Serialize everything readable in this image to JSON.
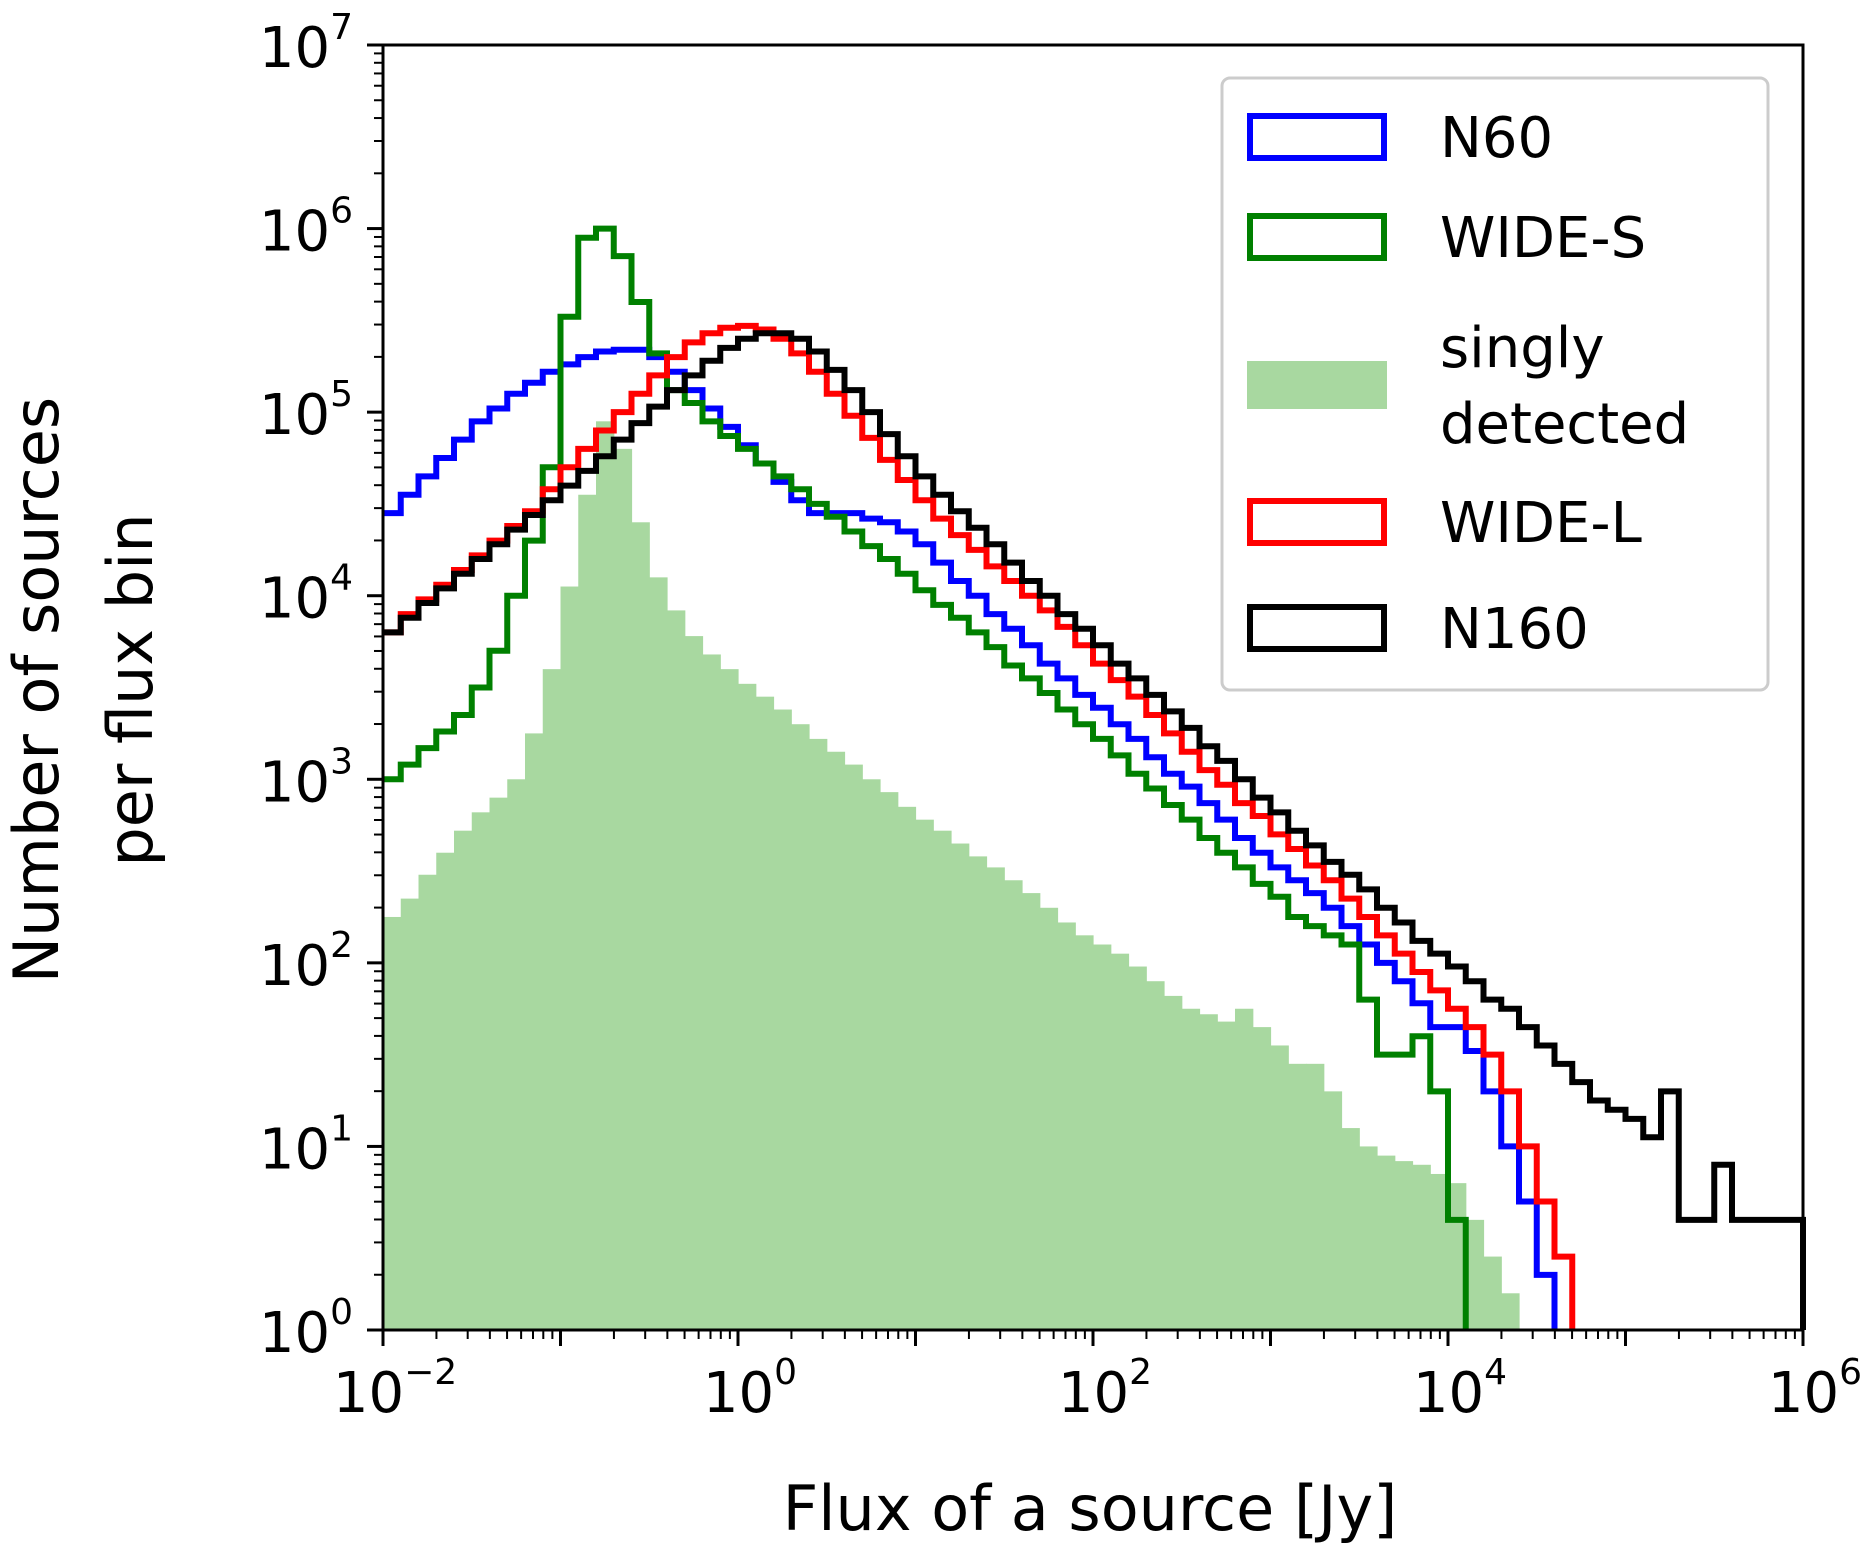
{
  "chart_data": {
    "type": "histogram",
    "title": "",
    "xlabel": "Flux of a source [Jy]",
    "ylabel_lines": [
      "Number of sources",
      "per flux bin"
    ],
    "xscale": "log",
    "yscale": "log",
    "xlim_log10": [
      -2,
      6
    ],
    "ylim_log10": [
      0,
      7
    ],
    "x_ticks": [
      {
        "base": "10",
        "exp": "−2",
        "log10": -2
      },
      {
        "base": "10",
        "exp": "0",
        "log10": 0
      },
      {
        "base": "10",
        "exp": "2",
        "log10": 2
      },
      {
        "base": "10",
        "exp": "4",
        "log10": 4
      },
      {
        "base": "10",
        "exp": "6",
        "log10": 6
      }
    ],
    "y_ticks": [
      {
        "base": "10",
        "exp": "0",
        "log10": 0
      },
      {
        "base": "10",
        "exp": "1",
        "log10": 1
      },
      {
        "base": "10",
        "exp": "2",
        "log10": 2
      },
      {
        "base": "10",
        "exp": "3",
        "log10": 3
      },
      {
        "base": "10",
        "exp": "4",
        "log10": 4
      },
      {
        "base": "10",
        "exp": "5",
        "log10": 5
      },
      {
        "base": "10",
        "exp": "6",
        "log10": 6
      },
      {
        "base": "10",
        "exp": "7",
        "log10": 7
      }
    ],
    "bin_edges_log10": {
      "start": -2.0,
      "width": 0.1
    },
    "legend_position": "top-right",
    "series": [
      {
        "name": "N60",
        "style": "step",
        "color": "#0000ff",
        "log10_counts": [
          4.45,
          4.55,
          4.65,
          4.75,
          4.85,
          4.95,
          5.02,
          5.1,
          5.16,
          5.22,
          5.26,
          5.3,
          5.33,
          5.34,
          5.34,
          5.3,
          5.22,
          5.12,
          5.02,
          4.92,
          4.82,
          4.72,
          4.62,
          4.52,
          4.45,
          4.45,
          4.45,
          4.42,
          4.4,
          4.35,
          4.28,
          4.18,
          4.08,
          4.0,
          3.9,
          3.82,
          3.73,
          3.63,
          3.55,
          3.46,
          3.39,
          3.3,
          3.22,
          3.12,
          3.03,
          2.96,
          2.87,
          2.78,
          2.68,
          2.6,
          2.52,
          2.45,
          2.38,
          2.3,
          2.2,
          2.1,
          2.0,
          1.9,
          1.78,
          1.65,
          1.65,
          1.52,
          1.3,
          1.0,
          0.7,
          0.3
        ]
      },
      {
        "name": "WIDE-S",
        "style": "step",
        "color": "#008000",
        "log10_counts": [
          3.0,
          3.08,
          3.17,
          3.26,
          3.35,
          3.5,
          3.7,
          4.0,
          4.3,
          4.7,
          5.52,
          5.95,
          6.0,
          5.85,
          5.6,
          5.32,
          5.12,
          5.05,
          4.95,
          4.87,
          4.8,
          4.72,
          4.65,
          4.58,
          4.5,
          4.43,
          4.35,
          4.27,
          4.2,
          4.12,
          4.03,
          3.95,
          3.88,
          3.8,
          3.72,
          3.62,
          3.55,
          3.47,
          3.38,
          3.3,
          3.22,
          3.13,
          3.03,
          2.95,
          2.86,
          2.78,
          2.68,
          2.6,
          2.52,
          2.43,
          2.36,
          2.25,
          2.2,
          2.15,
          2.1,
          1.8,
          1.5,
          1.5,
          1.6,
          1.3,
          0.6
        ]
      },
      {
        "name": "singly detected",
        "style": "filled",
        "color": "#a8d8a0",
        "log10_counts": [
          2.25,
          2.35,
          2.48,
          2.6,
          2.72,
          2.82,
          2.9,
          3.0,
          3.25,
          3.6,
          4.05,
          4.55,
          4.95,
          4.8,
          4.4,
          4.1,
          3.92,
          3.78,
          3.68,
          3.6,
          3.52,
          3.45,
          3.38,
          3.3,
          3.22,
          3.15,
          3.08,
          3.0,
          2.93,
          2.85,
          2.78,
          2.72,
          2.65,
          2.58,
          2.52,
          2.45,
          2.38,
          2.3,
          2.22,
          2.15,
          2.1,
          2.05,
          1.98,
          1.9,
          1.82,
          1.75,
          1.72,
          1.68,
          1.75,
          1.65,
          1.55,
          1.45,
          1.45,
          1.3,
          1.1,
          1.0,
          0.95,
          0.92,
          0.9,
          0.85,
          0.8,
          0.6,
          0.4,
          0.2
        ]
      },
      {
        "name": "WIDE-L",
        "style": "step",
        "color": "#ff0000",
        "log10_counts": [
          3.8,
          3.9,
          3.98,
          4.06,
          4.14,
          4.22,
          4.3,
          4.38,
          4.46,
          4.58,
          4.7,
          4.8,
          4.9,
          5.0,
          5.1,
          5.2,
          5.3,
          5.38,
          5.43,
          5.46,
          5.47,
          5.45,
          5.4,
          5.32,
          5.22,
          5.1,
          4.98,
          4.86,
          4.74,
          4.63,
          4.52,
          4.42,
          4.33,
          4.25,
          4.16,
          4.08,
          4.0,
          3.92,
          3.83,
          3.73,
          3.63,
          3.54,
          3.45,
          3.35,
          3.25,
          3.15,
          3.05,
          2.97,
          2.87,
          2.8,
          2.7,
          2.62,
          2.53,
          2.45,
          2.35,
          2.25,
          2.15,
          2.05,
          1.95,
          1.85,
          1.75,
          1.65,
          1.5,
          1.3,
          1.0,
          0.7,
          0.4
        ]
      },
      {
        "name": "N160",
        "style": "step",
        "color": "#000000",
        "log10_counts": [
          3.8,
          3.88,
          3.96,
          4.04,
          4.12,
          4.2,
          4.28,
          4.36,
          4.44,
          4.52,
          4.6,
          4.68,
          4.76,
          4.85,
          4.94,
          5.03,
          5.12,
          5.2,
          5.28,
          5.35,
          5.4,
          5.43,
          5.43,
          5.4,
          5.33,
          5.23,
          5.12,
          5.0,
          4.88,
          4.76,
          4.65,
          4.55,
          4.46,
          4.37,
          4.28,
          4.18,
          4.08,
          4.0,
          3.9,
          3.82,
          3.73,
          3.63,
          3.55,
          3.46,
          3.37,
          3.28,
          3.18,
          3.1,
          3.0,
          2.9,
          2.82,
          2.72,
          2.64,
          2.55,
          2.48,
          2.4,
          2.3,
          2.22,
          2.12,
          2.05,
          1.98,
          1.9,
          1.8,
          1.75,
          1.65,
          1.55,
          1.45,
          1.35,
          1.25,
          1.2,
          1.15,
          1.05,
          1.3,
          0.6,
          0.6,
          0.9,
          0.6,
          0.6,
          0.6,
          0.6
        ]
      }
    ]
  },
  "legend": {
    "items": [
      {
        "label": "N60",
        "color": "#0000ff",
        "kind": "outline"
      },
      {
        "label": "WIDE-S",
        "color": "#008000",
        "kind": "outline"
      },
      {
        "label_lines": [
          "singly",
          "detected"
        ],
        "color": "#a8d8a0",
        "kind": "filled"
      },
      {
        "label": "WIDE-L",
        "color": "#ff0000",
        "kind": "outline"
      },
      {
        "label": "N160",
        "color": "#000000",
        "kind": "outline"
      }
    ]
  }
}
